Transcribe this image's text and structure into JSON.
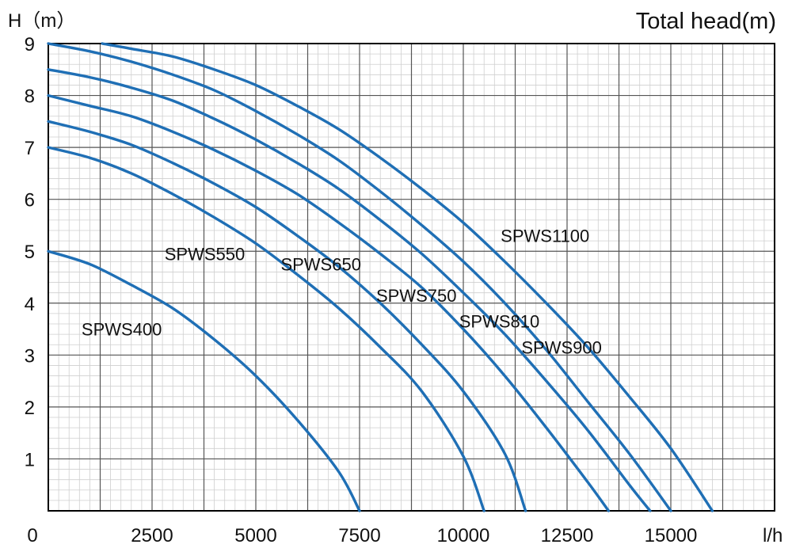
{
  "chart_data": {
    "type": "line",
    "title": "Total head(m)",
    "ylabel": "H（m）",
    "xlabel": "l/h",
    "xlim": [
      0,
      17500
    ],
    "ylim": [
      0,
      9
    ],
    "x_ticks": [
      "0",
      "2500",
      "5000",
      "7500",
      "10000",
      "12500",
      "15000"
    ],
    "y_ticks": [
      "1",
      "2",
      "3",
      "4",
      "5",
      "6",
      "7",
      "8",
      "9"
    ],
    "grid": true,
    "line_color": "#1f6fb5",
    "series": [
      {
        "name": "SPWS400",
        "points": [
          [
            0,
            5.0
          ],
          [
            1000,
            4.75
          ],
          [
            2000,
            4.35
          ],
          [
            3000,
            3.9
          ],
          [
            4000,
            3.3
          ],
          [
            5000,
            2.6
          ],
          [
            6000,
            1.75
          ],
          [
            7000,
            0.75
          ],
          [
            7500,
            0.0
          ]
        ]
      },
      {
        "name": "SPWS550",
        "points": [
          [
            0,
            7.0
          ],
          [
            1000,
            6.8
          ],
          [
            2000,
            6.5
          ],
          [
            3000,
            6.1
          ],
          [
            4000,
            5.65
          ],
          [
            5000,
            5.15
          ],
          [
            6000,
            4.55
          ],
          [
            7000,
            3.9
          ],
          [
            8000,
            3.15
          ],
          [
            9000,
            2.3
          ],
          [
            10000,
            1.05
          ],
          [
            10500,
            0.0
          ]
        ]
      },
      {
        "name": "SPWS650",
        "points": [
          [
            0,
            7.5
          ],
          [
            1000,
            7.3
          ],
          [
            2000,
            7.05
          ],
          [
            3000,
            6.7
          ],
          [
            4000,
            6.3
          ],
          [
            5000,
            5.85
          ],
          [
            6000,
            5.3
          ],
          [
            7000,
            4.7
          ],
          [
            8000,
            4.0
          ],
          [
            9000,
            3.2
          ],
          [
            10000,
            2.3
          ],
          [
            11000,
            1.1
          ],
          [
            11500,
            0.0
          ]
        ]
      },
      {
        "name": "SPWS750",
        "points": [
          [
            0,
            8.0
          ],
          [
            1000,
            7.8
          ],
          [
            2000,
            7.6
          ],
          [
            3000,
            7.3
          ],
          [
            4000,
            6.95
          ],
          [
            5000,
            6.55
          ],
          [
            6000,
            6.1
          ],
          [
            7000,
            5.55
          ],
          [
            8000,
            4.95
          ],
          [
            9000,
            4.3
          ],
          [
            10000,
            3.5
          ],
          [
            11000,
            2.6
          ],
          [
            12000,
            1.6
          ],
          [
            13000,
            0.55
          ],
          [
            13500,
            0.0
          ]
        ]
      },
      {
        "name": "SPWS810",
        "points": [
          [
            0,
            8.5
          ],
          [
            1000,
            8.35
          ],
          [
            2000,
            8.15
          ],
          [
            3000,
            7.9
          ],
          [
            4000,
            7.55
          ],
          [
            5000,
            7.15
          ],
          [
            6000,
            6.7
          ],
          [
            7000,
            6.2
          ],
          [
            8000,
            5.6
          ],
          [
            9000,
            4.95
          ],
          [
            10000,
            4.2
          ],
          [
            11000,
            3.4
          ],
          [
            12000,
            2.5
          ],
          [
            13000,
            1.55
          ],
          [
            14000,
            0.5
          ],
          [
            14500,
            0.0
          ]
        ]
      },
      {
        "name": "SPWS900",
        "points": [
          [
            0,
            9.0
          ],
          [
            1000,
            8.85
          ],
          [
            2000,
            8.65
          ],
          [
            3000,
            8.4
          ],
          [
            4000,
            8.1
          ],
          [
            5000,
            7.7
          ],
          [
            6000,
            7.25
          ],
          [
            7000,
            6.75
          ],
          [
            8000,
            6.15
          ],
          [
            9000,
            5.5
          ],
          [
            10000,
            4.8
          ],
          [
            11000,
            4.0
          ],
          [
            12000,
            3.1
          ],
          [
            13000,
            2.1
          ],
          [
            14000,
            1.1
          ],
          [
            15000,
            0.0
          ]
        ]
      },
      {
        "name": "SPWS1100",
        "points": [
          [
            1300,
            9.0
          ],
          [
            2000,
            8.9
          ],
          [
            3000,
            8.75
          ],
          [
            4000,
            8.5
          ],
          [
            5000,
            8.2
          ],
          [
            6000,
            7.8
          ],
          [
            7000,
            7.35
          ],
          [
            8000,
            6.8
          ],
          [
            9000,
            6.2
          ],
          [
            10000,
            5.55
          ],
          [
            11000,
            4.8
          ],
          [
            12000,
            4.0
          ],
          [
            13000,
            3.15
          ],
          [
            14000,
            2.2
          ],
          [
            15000,
            1.2
          ],
          [
            16000,
            0.0
          ]
        ]
      }
    ],
    "annotations": [
      {
        "text": "SPWS400",
        "series": "SPWS400",
        "x": 800,
        "y": 3.5
      },
      {
        "text": "SPWS550",
        "series": "SPWS550",
        "x": 2800,
        "y": 4.95
      },
      {
        "text": "SPWS650",
        "series": "SPWS650",
        "x": 5600,
        "y": 4.75
      },
      {
        "text": "SPWS750",
        "series": "SPWS750",
        "x": 7900,
        "y": 4.15
      },
      {
        "text": "SPWS810",
        "series": "SPWS810",
        "x": 9900,
        "y": 3.65
      },
      {
        "text": "SPWS900",
        "series": "SPWS900",
        "x": 11400,
        "y": 3.15
      },
      {
        "text": "SPWS1100",
        "series": "SPWS1100",
        "x": 10900,
        "y": 5.3
      }
    ]
  }
}
